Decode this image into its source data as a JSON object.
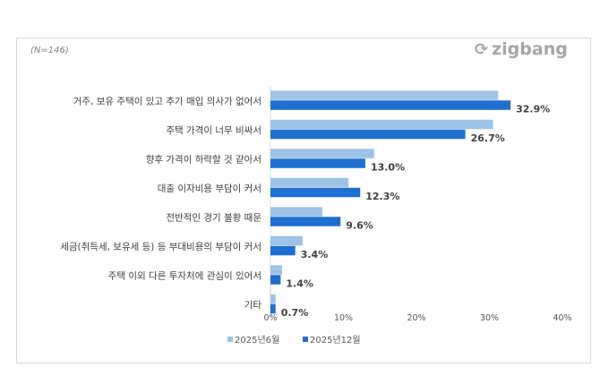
{
  "chart_data": {
    "type": "bar",
    "orientation": "horizontal",
    "note": "(N=146)",
    "logo": "zigbang",
    "categories": [
      "거주, 보유 주택이 있고 추가 매입 의사가 없어서",
      "주택 가격이 너무 비싸서",
      "향후 가격이 하락할 것 같아서",
      "대출 이자비용 부담이 커서",
      "전반적인 경기 불황 때문",
      "세금(취득세, 보유세 등) 등 부대비용의 부담이 커서",
      "주택 이외 다른 투자처에 관심이 있어서",
      "기타"
    ],
    "series": [
      {
        "name": "2025년6월",
        "color": "#9dc3e6",
        "values": [
          31.2,
          30.5,
          14.2,
          10.7,
          7.1,
          4.4,
          1.6,
          0.7
        ]
      },
      {
        "name": "2025년12월",
        "color": "#1f6fd1",
        "values": [
          32.9,
          26.7,
          13.0,
          12.3,
          9.6,
          3.4,
          1.4,
          0.7
        ],
        "labels": [
          "32.9%",
          "26.7%",
          "13.0%",
          "12.3%",
          "9.6%",
          "3.4%",
          "1.4%",
          "0.7%"
        ]
      }
    ],
    "xlim": [
      0,
      40
    ],
    "xticks": [
      "0%",
      "10%",
      "20%",
      "30%",
      "40%"
    ],
    "legend": "bottom"
  }
}
